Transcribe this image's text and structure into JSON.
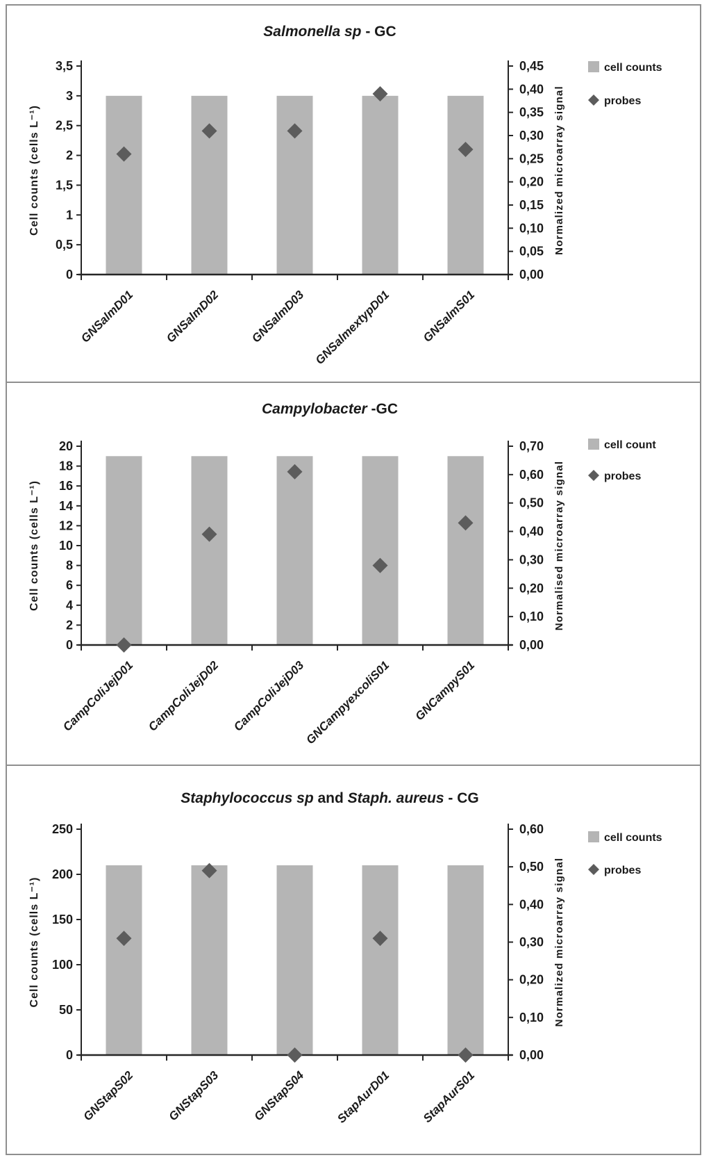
{
  "figure": {
    "background": "#ffffff",
    "panel_border_color": "#8f8f8f"
  },
  "colors": {
    "bar": "#b5b5b5",
    "marker": "#5c5c5c",
    "text": "#1a1a1a",
    "axis": "#262626"
  },
  "chart_data": [
    {
      "type": "combo-bar-scatter",
      "title": "Salmonella sp -  GC",
      "title_parts": [
        {
          "text": "Salmonella sp",
          "italic": true
        },
        {
          "text": " -  GC",
          "italic": false
        }
      ],
      "categories": [
        "GNSalmD01",
        "GNSalmD02",
        "GNSalmD03",
        "GNSalmextypD01",
        "GNSalmS01"
      ],
      "series": [
        {
          "name": "cell counts",
          "type": "bar",
          "axis": "left",
          "values": [
            3,
            3,
            3,
            3,
            3
          ]
        },
        {
          "name": "probes",
          "type": "scatter",
          "axis": "right",
          "values": [
            0.26,
            0.31,
            0.31,
            0.39,
            0.27
          ]
        }
      ],
      "left_axis": {
        "label": "Cell counts (cells L⁻¹)",
        "min": 0,
        "max": 3.5,
        "tick_values": [
          3.5,
          3,
          2.5,
          2,
          1.5,
          1,
          0.5,
          0
        ],
        "tick_labels": [
          "3,5",
          "3",
          "2,5",
          "2",
          "1,5",
          "1",
          "0,5",
          "0"
        ]
      },
      "right_axis": {
        "label": "Normalized microarray signal",
        "min": 0,
        "max": 0.45,
        "tick_values": [
          0.45,
          0.4,
          0.35,
          0.3,
          0.25,
          0.2,
          0.15,
          0.1,
          0.05,
          0
        ],
        "tick_labels": [
          "0,45",
          "0,40",
          "0,35",
          "0,30",
          "0,25",
          "0,20",
          "0,15",
          "0,10",
          "0,05",
          "0,00"
        ]
      },
      "legend": [
        {
          "label": "cell counts",
          "marker": "square"
        },
        {
          "label": "probes",
          "marker": "diamond"
        }
      ]
    },
    {
      "type": "combo-bar-scatter",
      "title": "Campylobacter -GC",
      "title_parts": [
        {
          "text": "Campylobacter",
          "italic": true
        },
        {
          "text": " -GC",
          "italic": false
        }
      ],
      "categories": [
        "CampColiJejD01",
        "CampColiJejD02",
        "CampColiJejD03",
        "GNCampyexcoliS01",
        "GNCampyS01"
      ],
      "series": [
        {
          "name": "cell count",
          "type": "bar",
          "axis": "left",
          "values": [
            19,
            19,
            19,
            19,
            19
          ]
        },
        {
          "name": "probes",
          "type": "scatter",
          "axis": "right",
          "values": [
            0.0,
            0.39,
            0.61,
            0.28,
            0.43
          ]
        }
      ],
      "left_axis": {
        "label": "Cell counts (cells L⁻¹)",
        "min": 0,
        "max": 20,
        "tick_values": [
          20,
          18,
          16,
          14,
          12,
          10,
          8,
          6,
          4,
          2,
          0
        ],
        "tick_labels": [
          "20",
          "18",
          "16",
          "14",
          "12",
          "10",
          "8",
          "6",
          "4",
          "2",
          "0"
        ]
      },
      "right_axis": {
        "label": "Normalised microarray signal",
        "min": 0,
        "max": 0.7,
        "tick_values": [
          0.7,
          0.6,
          0.5,
          0.4,
          0.3,
          0.2,
          0.1,
          0
        ],
        "tick_labels": [
          "0,70",
          "0,60",
          "0,50",
          "0,40",
          "0,30",
          "0,20",
          "0,10",
          "0,00"
        ]
      },
      "legend": [
        {
          "label": "cell count",
          "marker": "square"
        },
        {
          "label": "probes",
          "marker": "diamond"
        }
      ]
    },
    {
      "type": "combo-bar-scatter",
      "title": "Staphylococcus sp and Staph. aureus - CG",
      "title_parts": [
        {
          "text": "Staphylococcus sp",
          "italic": true
        },
        {
          "text": " and ",
          "italic": false
        },
        {
          "text": "Staph. aureus",
          "italic": true
        },
        {
          "text": " - CG",
          "italic": false
        }
      ],
      "categories": [
        "GNStapS02",
        "GNStapS03",
        "GNStapS04",
        "StapAurD01",
        "StapAurS01"
      ],
      "series": [
        {
          "name": "cell counts",
          "type": "bar",
          "axis": "left",
          "values": [
            210,
            210,
            210,
            210,
            210
          ]
        },
        {
          "name": "probes",
          "type": "scatter",
          "axis": "right",
          "values": [
            0.31,
            0.49,
            0.0,
            0.31,
            0.0
          ]
        }
      ],
      "left_axis": {
        "label": "Cell counts (cells L⁻¹)",
        "min": 0,
        "max": 250,
        "tick_values": [
          250,
          200,
          150,
          100,
          50,
          0
        ],
        "tick_labels": [
          "250",
          "200",
          "150",
          "100",
          "50",
          "0"
        ]
      },
      "right_axis": {
        "label": "Normalized microarray signal",
        "min": 0,
        "max": 0.6,
        "tick_values": [
          0.6,
          0.5,
          0.4,
          0.3,
          0.2,
          0.1,
          0
        ],
        "tick_labels": [
          "0,60",
          "0,50",
          "0,40",
          "0,30",
          "0,20",
          "0,10",
          "0,00"
        ]
      },
      "legend": [
        {
          "label": "cell counts",
          "marker": "square"
        },
        {
          "label": "probes",
          "marker": "diamond"
        }
      ]
    }
  ]
}
